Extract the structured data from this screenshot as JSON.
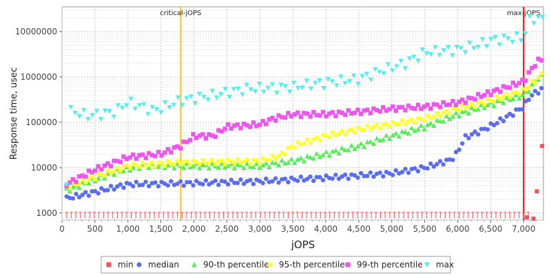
{
  "chart_data": {
    "type": "scatter",
    "xlabel": "jOPS",
    "ylabel": "Response time, usec",
    "xlim": [
      0,
      7300
    ],
    "ylim": [
      700,
      35000000
    ],
    "yscale": "log",
    "grid": true,
    "legend_position": "bottom",
    "x_ticks": [
      0,
      500,
      1000,
      1500,
      2000,
      2500,
      3000,
      3500,
      4000,
      4500,
      5000,
      5500,
      6000,
      6500,
      7000
    ],
    "x_tick_labels": [
      "0",
      "500",
      "1,000",
      "1,500",
      "2,000",
      "2,500",
      "3,000",
      "3,500",
      "4,000",
      "4,500",
      "5,000",
      "5,500",
      "6,000",
      "6,500",
      "7,000"
    ],
    "y_ticks": [
      1000,
      10000,
      100000,
      1000000,
      10000000
    ],
    "y_tick_labels": [
      "1000",
      "10000",
      "100000",
      "1000000",
      "10000000"
    ],
    "markers": [
      {
        "label": "critical-jOPS",
        "x": 1800,
        "color": "#ffc20e"
      },
      {
        "label": "max-jOPS",
        "x": 7000,
        "color": "#ff0000"
      }
    ],
    "series": [
      {
        "name": "min",
        "color": "#f05555",
        "shape": "square",
        "x_start": 70,
        "x_step": 70,
        "count": 101,
        "y_start": 1000,
        "y_end": 1000,
        "extra": [
          [
            7050,
            800
          ],
          [
            7150,
            750
          ],
          [
            7200,
            3000
          ],
          [
            7280,
            30000
          ]
        ]
      },
      {
        "name": "median",
        "color": "#5a6cf0",
        "shape": "circle",
        "points": [
          [
            70,
            2100
          ],
          [
            1000,
            4300
          ],
          [
            1800,
            4500
          ],
          [
            3000,
            5000
          ],
          [
            4000,
            6000
          ],
          [
            5000,
            7500
          ],
          [
            5500,
            10000
          ],
          [
            5900,
            15000
          ],
          [
            6000,
            22000
          ],
          [
            6100,
            45000
          ],
          [
            6400,
            70000
          ],
          [
            6700,
            120000
          ],
          [
            7000,
            220000
          ],
          [
            7100,
            380000
          ],
          [
            7280,
            550000
          ]
        ]
      },
      {
        "name": "90-th percentile",
        "color": "#55ee55",
        "shape": "triangle-up",
        "points": [
          [
            70,
            3200
          ],
          [
            800,
            8000
          ],
          [
            1200,
            11000
          ],
          [
            1800,
            11000
          ],
          [
            3000,
            11000
          ],
          [
            3500,
            14000
          ],
          [
            4000,
            20000
          ],
          [
            4500,
            30000
          ],
          [
            5000,
            50000
          ],
          [
            5500,
            80000
          ],
          [
            6000,
            150000
          ],
          [
            6500,
            250000
          ],
          [
            7000,
            400000
          ],
          [
            7150,
            700000
          ],
          [
            7250,
            1100000
          ],
          [
            7300,
            900000
          ]
        ]
      },
      {
        "name": "95-th percentile",
        "color": "#ffff33",
        "shape": "circle",
        "points": [
          [
            70,
            3800
          ],
          [
            1000,
            11000
          ],
          [
            1800,
            13000
          ],
          [
            3000,
            14000
          ],
          [
            3300,
            18000
          ],
          [
            3500,
            30000
          ],
          [
            4000,
            50000
          ],
          [
            4500,
            70000
          ],
          [
            5000,
            90000
          ],
          [
            5500,
            120000
          ],
          [
            6000,
            200000
          ],
          [
            6500,
            300000
          ],
          [
            7000,
            500000
          ],
          [
            7300,
            1200000
          ]
        ]
      },
      {
        "name": "99-th percentile",
        "color": "#ee55ee",
        "shape": "square",
        "points": [
          [
            70,
            4300
          ],
          [
            500,
            9000
          ],
          [
            1000,
            17000
          ],
          [
            1500,
            20000
          ],
          [
            1800,
            30000
          ],
          [
            2000,
            50000
          ],
          [
            2300,
            50000
          ],
          [
            2500,
            80000
          ],
          [
            3000,
            90000
          ],
          [
            3200,
            120000
          ],
          [
            3500,
            150000
          ],
          [
            4000,
            150000
          ],
          [
            4500,
            170000
          ],
          [
            5000,
            200000
          ],
          [
            5500,
            220000
          ],
          [
            6000,
            270000
          ],
          [
            6500,
            450000
          ],
          [
            7000,
            800000
          ],
          [
            7200,
            2200000
          ],
          [
            7300,
            2500000
          ]
        ]
      },
      {
        "name": "max",
        "color": "#55eeee",
        "shape": "triangle-down",
        "points": [
          [
            70,
            5500
          ],
          [
            130,
            180000
          ],
          [
            400,
            140000
          ],
          [
            800,
            170000
          ],
          [
            1000,
            280000
          ],
          [
            1400,
            180000
          ],
          [
            1800,
            300000
          ],
          [
            2300,
            400000
          ],
          [
            2800,
            550000
          ],
          [
            3500,
            600000
          ],
          [
            3800,
            700000
          ],
          [
            4500,
            900000
          ],
          [
            4800,
            1300000
          ],
          [
            5200,
            2000000
          ],
          [
            5500,
            3500000
          ],
          [
            6000,
            4000000
          ],
          [
            6300,
            5000000
          ],
          [
            6500,
            6500000
          ],
          [
            7000,
            7500000
          ],
          [
            7100,
            20000000
          ],
          [
            7300,
            19000000
          ]
        ]
      }
    ]
  }
}
